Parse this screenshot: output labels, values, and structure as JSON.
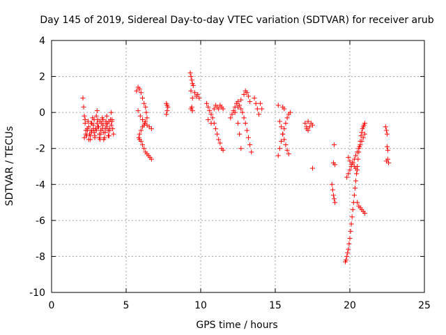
{
  "chart_data": {
    "type": "scatter",
    "title": "Day 145 of 2019, Sidereal Day-to-day VTEC variation (SDTVAR) for receiver arub",
    "xlabel": "GPS time / hours",
    "ylabel": "SDTVAR / TECUs",
    "xlim": [
      0,
      25
    ],
    "ylim": [
      -10,
      4
    ],
    "xticks": [
      0,
      5,
      10,
      15,
      20,
      25
    ],
    "yticks": [
      -10,
      -8,
      -6,
      -4,
      -2,
      0,
      2,
      4
    ],
    "grid": true,
    "marker": "+",
    "color": "#ff0000",
    "series": [
      {
        "name": "SDTVAR",
        "x": [
          2.1,
          2.15,
          2.2,
          2.25,
          2.3,
          2.35,
          2.4,
          2.45,
          2.5,
          2.55,
          2.6,
          2.65,
          2.7,
          2.75,
          2.8,
          2.85,
          2.9,
          2.95,
          3.0,
          3.05,
          3.1,
          3.15,
          3.2,
          3.25,
          3.3,
          3.35,
          3.4,
          3.45,
          3.5,
          3.55,
          3.6,
          3.65,
          3.7,
          3.75,
          3.8,
          3.85,
          3.9,
          3.95,
          4.0,
          4.05,
          4.1,
          4.15,
          2.2,
          2.3,
          2.4,
          2.5,
          2.6,
          2.7,
          2.8,
          2.9,
          3.0,
          3.1,
          3.2,
          3.3,
          3.4,
          3.5,
          3.6,
          3.7,
          3.8,
          3.9,
          4.0,
          2.25,
          2.45,
          2.65,
          2.85,
          3.05,
          3.25,
          3.45,
          3.65,
          3.85,
          4.05,
          5.7,
          5.8,
          5.9,
          6.0,
          6.1,
          6.2,
          6.3,
          6.35,
          6.4,
          6.3,
          6.2,
          6.1,
          6.0,
          5.9,
          5.85,
          5.9,
          6.0,
          6.1,
          6.2,
          6.3,
          6.4,
          6.5,
          6.6,
          6.7,
          5.8,
          5.95,
          6.1,
          6.25,
          6.4,
          6.55,
          6.7,
          7.7,
          7.75,
          7.8,
          7.75,
          7.7,
          9.3,
          9.35,
          9.4,
          9.45,
          9.5,
          9.35,
          9.4,
          9.45,
          9.6,
          9.7,
          9.8,
          9.9,
          9.35,
          9.45,
          10.4,
          10.5,
          10.6,
          10.7,
          10.8,
          10.9,
          11.0,
          11.1,
          11.2,
          11.3,
          11.4,
          11.5,
          10.5,
          10.7,
          10.9,
          11.0,
          11.1,
          11.2,
          11.3,
          11.4,
          11.5,
          12.0,
          12.1,
          12.2,
          12.3,
          12.4,
          12.5,
          12.6,
          12.7,
          12.8,
          12.9,
          13.0,
          13.1,
          13.2,
          13.3,
          13.4,
          12.3,
          12.5,
          12.7,
          12.9,
          13.0,
          13.1,
          13.2,
          13.3,
          12.5,
          12.6,
          12.7,
          13.6,
          13.7,
          13.8,
          13.9,
          14.0,
          14.1,
          15.2,
          15.3,
          15.4,
          15.5,
          15.6,
          15.7,
          15.8,
          15.9,
          16.0,
          15.6,
          15.5,
          15.4,
          15.3,
          15.2,
          15.7,
          15.8,
          15.9,
          15.5,
          15.6,
          17.0,
          17.1,
          17.2,
          17.3,
          17.4,
          17.5,
          17.1,
          17.2,
          17.5,
          18.8,
          18.85,
          18.9,
          18.95,
          19.0,
          18.9,
          19.0,
          18.95,
          19.7,
          19.75,
          19.8,
          19.85,
          19.9,
          19.95,
          20.0,
          20.05,
          20.1,
          20.15,
          20.2,
          20.25,
          20.3,
          20.35,
          20.4,
          20.45,
          20.5,
          20.55,
          20.6,
          20.65,
          20.7,
          20.75,
          20.8,
          20.85,
          20.9,
          20.95,
          21.0,
          19.8,
          19.9,
          20.0,
          20.1,
          20.2,
          20.3,
          20.4,
          20.5,
          20.6,
          20.7,
          20.8,
          20.9,
          21.0,
          20.5,
          20.6,
          20.7,
          20.8,
          20.9,
          21.0,
          20.2,
          20.3,
          20.4,
          20.5,
          19.9,
          20.0,
          20.1,
          22.4,
          22.45,
          22.5,
          22.55,
          22.6,
          22.45,
          22.5,
          22.55
        ],
        "y": [
          0.8,
          0.3,
          -0.2,
          -0.6,
          -1.0,
          -1.3,
          -0.9,
          -0.5,
          -0.8,
          -1.2,
          -1.5,
          -1.0,
          -0.6,
          -0.3,
          -0.7,
          -1.1,
          -1.4,
          -0.9,
          -0.2,
          0.1,
          -0.4,
          -0.8,
          -1.2,
          -1.5,
          -1.0,
          -0.6,
          -0.3,
          -0.7,
          -1.1,
          -1.4,
          -0.9,
          -0.5,
          -0.2,
          -0.6,
          -1.0,
          -1.3,
          -0.9,
          -0.4,
          0.0,
          -0.5,
          -0.9,
          -1.2,
          -1.4,
          -1.2,
          -1.0,
          -1.5,
          -1.3,
          -1.1,
          -0.9,
          -1.3,
          -1.0,
          -0.8,
          -1.4,
          -1.2,
          -0.9,
          -1.5,
          -1.1,
          -0.8,
          -1.3,
          -1.0,
          -0.7,
          -0.4,
          -0.5,
          -0.6,
          -0.4,
          -0.6,
          -0.5,
          -0.4,
          -0.6,
          -0.5,
          -0.4,
          1.2,
          1.4,
          1.3,
          1.1,
          0.8,
          0.5,
          0.3,
          0.0,
          -0.3,
          -0.5,
          -0.7,
          -0.8,
          -1.0,
          -1.2,
          -1.4,
          -1.5,
          -1.6,
          -1.8,
          -2.0,
          -2.2,
          -2.3,
          -2.4,
          -2.5,
          -2.6,
          0.1,
          -0.2,
          -0.4,
          -0.6,
          -0.7,
          -0.8,
          -0.9,
          0.5,
          0.4,
          0.3,
          0.1,
          -0.1,
          2.2,
          2.0,
          1.8,
          1.6,
          1.5,
          0.2,
          0.3,
          0.1,
          1.1,
          0.9,
          1.0,
          0.8,
          1.2,
          0.8,
          0.5,
          0.3,
          0.1,
          -0.1,
          -0.3,
          -0.6,
          -0.9,
          -1.2,
          -1.5,
          -1.7,
          -2.0,
          -2.1,
          -0.4,
          -0.6,
          0.2,
          0.4,
          0.3,
          0.2,
          0.4,
          0.3,
          0.2,
          -0.3,
          -0.1,
          0.1,
          0.3,
          0.5,
          0.6,
          0.4,
          0.2,
          0.0,
          -0.3,
          -0.6,
          -1.0,
          -1.4,
          -1.8,
          -2.2,
          0.0,
          0.3,
          0.7,
          1.0,
          1.2,
          1.1,
          0.9,
          0.6,
          -0.6,
          -1.2,
          -2.0,
          0.8,
          0.5,
          0.2,
          -0.1,
          0.5,
          0.2,
          -2.4,
          -2.0,
          -1.6,
          -1.2,
          -0.9,
          -0.6,
          -0.3,
          -0.1,
          0.0,
          -1.5,
          -1.2,
          -0.8,
          -0.5,
          0.4,
          -1.8,
          -2.1,
          -2.3,
          0.3,
          0.2,
          -0.6,
          -0.8,
          -1.0,
          -0.8,
          -0.6,
          -0.7,
          -0.9,
          -0.5,
          -3.1,
          -4.0,
          -4.3,
          -4.6,
          -4.8,
          -5.0,
          -2.8,
          -2.9,
          -1.8,
          -8.3,
          -8.2,
          -8.0,
          -7.8,
          -7.6,
          -7.3,
          -7.0,
          -6.6,
          -6.2,
          -5.8,
          -5.4,
          -5.0,
          -4.6,
          -4.2,
          -3.8,
          -3.4,
          -3.0,
          -2.6,
          -2.2,
          -1.9,
          -1.6,
          -1.3,
          -1.1,
          -0.9,
          -0.8,
          -0.7,
          -0.6,
          -3.6,
          -3.4,
          -3.2,
          -3.0,
          -2.8,
          -2.6,
          -2.4,
          -2.2,
          -2.0,
          -1.8,
          -1.6,
          -1.4,
          -1.2,
          -5.0,
          -5.2,
          -5.3,
          -5.4,
          -5.5,
          -5.6,
          -2.8,
          -3.0,
          -3.1,
          -3.2,
          -2.5,
          -2.7,
          -2.9,
          -0.8,
          -1.0,
          -1.2,
          -2.6,
          -2.8,
          -2.7,
          -1.9,
          -2.1
        ]
      }
    ]
  }
}
